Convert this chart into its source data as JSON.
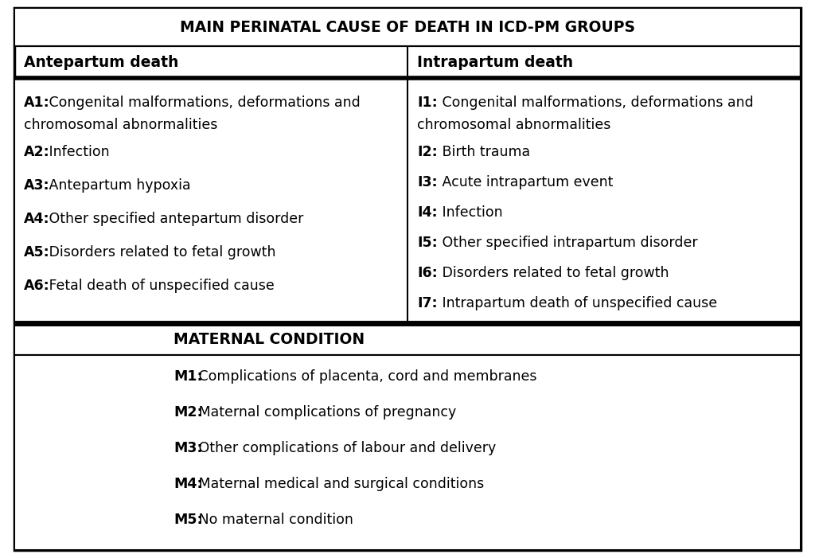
{
  "title": "MAIN PERINATAL CAUSE OF DEATH IN ICD-PM GROUPS",
  "col1_header": "Antepartum death",
  "col2_header": "Intrapartum death",
  "col1_items": [
    [
      "A1:",
      " Congenital malformations, deformations and\nchromosomal abnormalities"
    ],
    [
      "A2:",
      " Infection"
    ],
    [
      "A3:",
      " Antepartum hypoxia"
    ],
    [
      "A4:",
      " Other specified antepartum disorder"
    ],
    [
      "A5:",
      " Disorders related to fetal growth"
    ],
    [
      "A6:",
      " Fetal death of unspecified cause"
    ]
  ],
  "col2_items": [
    [
      "I1:",
      " Congenital malformations, deformations and\nchromosomal abnormalities"
    ],
    [
      "I2:",
      " Birth trauma"
    ],
    [
      "I3:",
      " Acute intrapartum event"
    ],
    [
      "I4:",
      " Infection"
    ],
    [
      "I5:",
      " Other specified intrapartum disorder"
    ],
    [
      "I6:",
      " Disorders related to fetal growth"
    ],
    [
      "I7:",
      " Intrapartum death of unspecified cause"
    ]
  ],
  "maternal_header": "MATERNAL CONDITION",
  "maternal_items": [
    [
      "M1:",
      " Complications of placenta, cord and membranes"
    ],
    [
      "M2:",
      " Maternal complications of pregnancy"
    ],
    [
      "M3:",
      " Other complications of labour and delivery"
    ],
    [
      "M4:",
      " Maternal medical and surgical conditions"
    ],
    [
      "M5:",
      " No maternal condition"
    ]
  ],
  "bg_color": "#ffffff",
  "border_color": "#000000",
  "text_color": "#000000",
  "title_fontsize": 13.5,
  "header_fontsize": 13.5,
  "body_fontsize": 12.5
}
